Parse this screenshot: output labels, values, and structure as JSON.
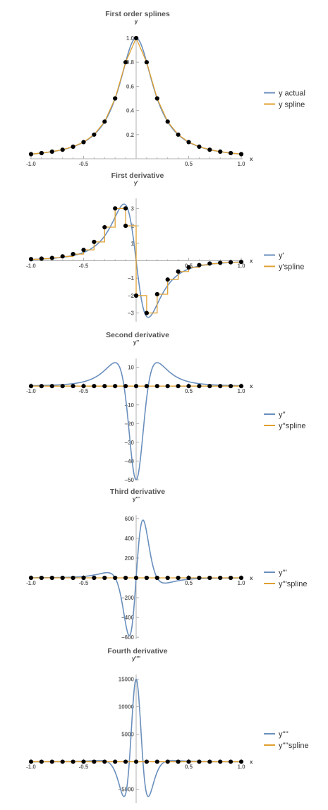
{
  "colors": {
    "actual": "#6a8fbd",
    "spline": "#e0a030",
    "dots": "#000000"
  },
  "chart_data": [
    {
      "type": "line",
      "title": "First order splines",
      "xlabel": "x",
      "ylabel": "y",
      "xlim": [
        -1.0,
        1.0
      ],
      "ylim": [
        0,
        1.0
      ],
      "x_ticks": [
        "-1.0",
        "-0.5",
        "0.5",
        "1.0"
      ],
      "y_ticks": [
        0.2,
        0.4,
        0.6,
        0.8,
        1.0
      ],
      "y_tick_labels": [
        "0.2",
        "0.4",
        "0.6",
        "0.8",
        "1.0"
      ],
      "legend": [
        "y actual",
        "y spline"
      ],
      "series": [
        {
          "name": "y actual",
          "function": "1/(1+25x^2)",
          "derivative": 0
        },
        {
          "name": "y spline",
          "style": "piecewise-linear"
        }
      ],
      "points": {
        "x": [
          -1.0,
          -0.9,
          -0.8,
          -0.7,
          -0.6,
          -0.5,
          -0.4,
          -0.3,
          -0.2,
          -0.1,
          0,
          0.1,
          0.2,
          0.3,
          0.4,
          0.5,
          0.6,
          0.7,
          0.8,
          0.9,
          1.0
        ],
        "y": [
          0.038,
          0.047,
          0.059,
          0.075,
          0.1,
          0.138,
          0.2,
          0.308,
          0.5,
          0.8,
          1.0,
          0.8,
          0.5,
          0.308,
          0.2,
          0.138,
          0.1,
          0.075,
          0.059,
          0.047,
          0.038
        ]
      }
    },
    {
      "type": "line",
      "title": "First derivative",
      "xlabel": "x",
      "ylabel": "y'",
      "xlim": [
        -1.0,
        1.0
      ],
      "ylim": [
        -3.5,
        3.5
      ],
      "x_ticks": [
        "-1.0",
        "-0.5",
        "0.5",
        "1.0"
      ],
      "y_ticks": [
        -3,
        -2,
        -1,
        1,
        2,
        3
      ],
      "y_tick_labels": [
        "−3",
        "−2",
        "−1",
        "1",
        "2",
        "3"
      ],
      "legend": [
        "y'",
        "y'spline"
      ],
      "series": [
        {
          "name": "y'",
          "function": "-50x/(1+25x^2)^2",
          "derivative": 1
        },
        {
          "name": "y'spline",
          "style": "piecewise-constant"
        }
      ],
      "points": {
        "x": [
          -1.0,
          -0.9,
          -0.8,
          -0.7,
          -0.6,
          -0.5,
          -0.4,
          -0.3,
          -0.2,
          -0.1,
          -0.1,
          0,
          0,
          0.1,
          0.2,
          0.3,
          0.4,
          0.5,
          0.6,
          0.7,
          0.8,
          0.9,
          1.0
        ],
        "y": [
          0.09,
          0.12,
          0.16,
          0.25,
          0.38,
          0.62,
          1.08,
          1.92,
          3.0,
          3.0,
          2.0,
          -2.0,
          -2.0,
          -3.0,
          -1.92,
          -1.08,
          -0.62,
          -0.38,
          -0.25,
          -0.16,
          -0.12,
          -0.09,
          -0.07
        ]
      }
    },
    {
      "type": "line",
      "title": "Second derivative",
      "xlabel": "x",
      "ylabel": "y''",
      "xlim": [
        -1.0,
        1.0
      ],
      "ylim": [
        -50,
        14
      ],
      "x_ticks": [
        "-1.0",
        "-0.5",
        "0.5",
        "1.0"
      ],
      "y_ticks": [
        -50,
        -40,
        -30,
        -20,
        -10,
        10
      ],
      "y_tick_labels": [
        "−50",
        "−40",
        "−30",
        "−20",
        "−10",
        "10"
      ],
      "legend": [
        "y''",
        "y''spline"
      ],
      "series": [
        {
          "name": "y''",
          "function": "d2/dx2 of 1/(1+25x^2)",
          "derivative": 2
        },
        {
          "name": "y''spline",
          "style": "zero"
        }
      ],
      "points": {
        "x": [
          -1.0,
          -0.9,
          -0.8,
          -0.7,
          -0.6,
          -0.5,
          -0.4,
          -0.3,
          -0.2,
          -0.1,
          0,
          0.1,
          0.2,
          0.3,
          0.4,
          0.5,
          0.6,
          0.7,
          0.8,
          0.9,
          1.0
        ],
        "y": [
          0,
          0,
          0,
          0,
          0,
          0,
          0,
          0,
          0,
          0,
          0,
          0,
          0,
          0,
          0,
          0,
          0,
          0,
          0,
          0,
          0
        ]
      }
    },
    {
      "type": "line",
      "title": "Third derivative",
      "xlabel": "x",
      "ylabel": "y'''",
      "xlim": [
        -1.0,
        1.0
      ],
      "ylim": [
        -620,
        620
      ],
      "x_ticks": [
        "-1.0",
        "-0.5",
        "0.5",
        "1.0"
      ],
      "y_ticks": [
        -600,
        -400,
        -200,
        200,
        400,
        600
      ],
      "y_tick_labels": [
        "−600",
        "−400",
        "−200",
        "200",
        "400",
        "600"
      ],
      "legend": [
        "y'''",
        "y'''spline"
      ],
      "series": [
        {
          "name": "y'''",
          "function": "d3/dx3 of 1/(1+25x^2)",
          "derivative": 3
        },
        {
          "name": "y'''spline",
          "style": "zero"
        }
      ],
      "points": {
        "x": [
          -1.0,
          -0.9,
          -0.8,
          -0.7,
          -0.6,
          -0.5,
          -0.4,
          -0.3,
          -0.2,
          -0.1,
          0,
          0.1,
          0.2,
          0.3,
          0.4,
          0.5,
          0.6,
          0.7,
          0.8,
          0.9,
          1.0
        ],
        "y": [
          0,
          0,
          0,
          0,
          0,
          0,
          0,
          0,
          0,
          0,
          0,
          0,
          0,
          0,
          0,
          0,
          0,
          0,
          0,
          0,
          0
        ]
      }
    },
    {
      "type": "line",
      "title": "Fourth derivative",
      "xlabel": "x",
      "ylabel": "y''''",
      "xlim": [
        -1.0,
        1.0
      ],
      "ylim": [
        -7500,
        15600
      ],
      "x_ticks": [
        "-1.0",
        "-0.5",
        "0.5",
        "1.0"
      ],
      "y_ticks": [
        -5000,
        5000,
        10000,
        15000
      ],
      "y_tick_labels": [
        "−5000",
        "5000",
        "10000",
        "15000"
      ],
      "legend": [
        "y''''",
        "y''''spline"
      ],
      "series": [
        {
          "name": "y''''",
          "function": "d4/dx4 of 1/(1+25x^2)",
          "derivative": 4
        },
        {
          "name": "y''''spline",
          "style": "zero"
        }
      ],
      "points": {
        "x": [
          -1.0,
          -0.9,
          -0.8,
          -0.7,
          -0.6,
          -0.5,
          -0.4,
          -0.3,
          -0.2,
          -0.1,
          0,
          0.1,
          0.2,
          0.3,
          0.4,
          0.5,
          0.6,
          0.7,
          0.8,
          0.9,
          1.0
        ],
        "y": [
          0,
          0,
          0,
          0,
          0,
          0,
          0,
          0,
          0,
          0,
          0,
          0,
          0,
          0,
          0,
          0,
          0,
          0,
          0,
          0,
          0
        ]
      }
    }
  ]
}
